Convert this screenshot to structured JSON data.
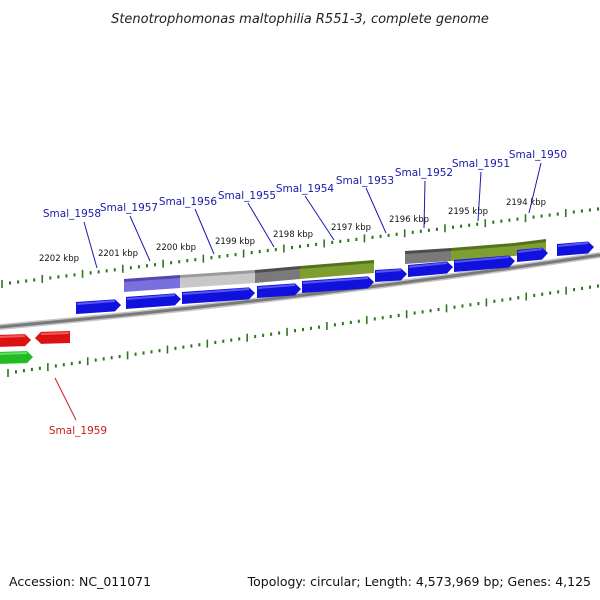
{
  "title": "Stenotrophomonas maltophilia R551-3, complete genome",
  "accession_text": "Accession: NC_011071",
  "topology_text": "Topology: circular; Length: 4,573,969 bp; Genes: 4,125",
  "colors": {
    "plus_strand_label": "#1a1aa8",
    "minus_strand_label": "#cc1a1a",
    "tick": "#2a7a1a",
    "backbone": "#888888",
    "cds_forward": "#1111dd",
    "cds_reverse": "#dd1111",
    "cds_other": "#22bb22"
  },
  "ruler": {
    "scale_labels": [
      "2202 kbp",
      "2201 kbp",
      "2200 kbp",
      "2199 kbp",
      "2198 kbp",
      "2197 kbp",
      "2196 kbp",
      "2195 kbp",
      "2194 kbp"
    ]
  },
  "genes": [
    {
      "name": "Smal_1958",
      "strand": "+"
    },
    {
      "name": "Smal_1957",
      "strand": "+"
    },
    {
      "name": "Smal_1956",
      "strand": "+"
    },
    {
      "name": "Smal_1955",
      "strand": "+"
    },
    {
      "name": "Smal_1954",
      "strand": "+"
    },
    {
      "name": "Smal_1953",
      "strand": "+"
    },
    {
      "name": "Smal_1952",
      "strand": "+"
    },
    {
      "name": "Smal_1951",
      "strand": "+"
    },
    {
      "name": "Smal_1950",
      "strand": "+"
    },
    {
      "name": "Smal_1959",
      "strand": "-"
    }
  ]
}
